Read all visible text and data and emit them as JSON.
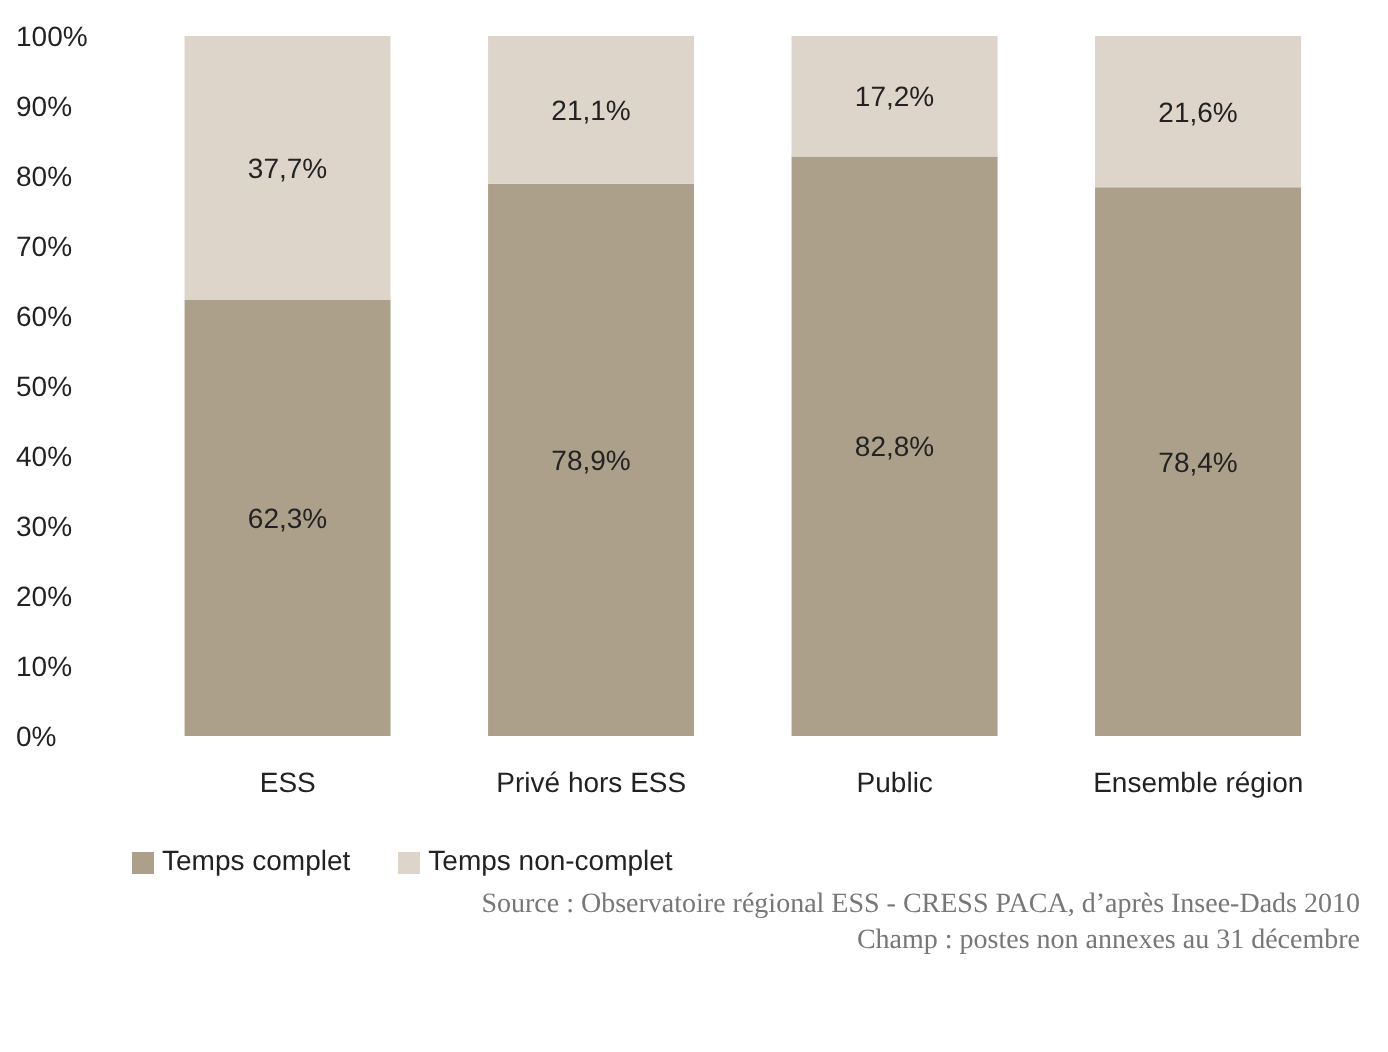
{
  "chart_data": {
    "type": "bar",
    "stacked": true,
    "categories": [
      "ESS",
      "Privé hors ESS",
      "Public",
      "Ensemble région"
    ],
    "series": [
      {
        "name": "Temps complet",
        "color": "#ada08a",
        "values": [
          62.3,
          78.9,
          82.8,
          78.4
        ],
        "value_labels": [
          "62,3%",
          "78,9%",
          "82,8%",
          "78,4%"
        ]
      },
      {
        "name": "Temps non-complet",
        "color": "#ddd5c9",
        "values": [
          37.7,
          21.1,
          17.2,
          21.6
        ],
        "value_labels": [
          "37,7%",
          "21,1%",
          "17,2%",
          "21,6%"
        ]
      }
    ],
    "ylim": [
      0,
      100
    ],
    "yticks": [
      {
        "value": 0,
        "label": "0%"
      },
      {
        "value": 10,
        "label": "10%"
      },
      {
        "value": 20,
        "label": "20%"
      },
      {
        "value": 30,
        "label": "30%"
      },
      {
        "value": 40,
        "label": "40%"
      },
      {
        "value": 50,
        "label": "50%"
      },
      {
        "value": 60,
        "label": "60%"
      },
      {
        "value": 70,
        "label": "70%"
      },
      {
        "value": 80,
        "label": "80%"
      },
      {
        "value": 90,
        "label": "90%"
      },
      {
        "value": 100,
        "label": "100%"
      }
    ],
    "grid": false,
    "legend": "bottom left",
    "annotations": [
      "Source : Observatoire régional ESS - CRESS PACA, d’après Insee-Dads 2010",
      "Champ : postes non annexes au 31 décembre"
    ]
  }
}
